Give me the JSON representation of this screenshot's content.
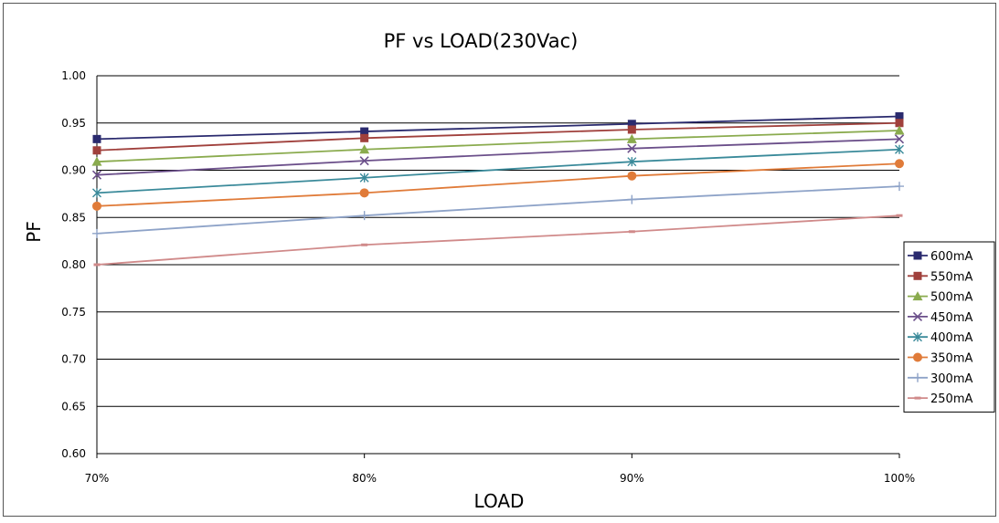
{
  "chart_data": {
    "type": "line",
    "title": "PF vs LOAD(230Vac)",
    "xlabel": "LOAD",
    "ylabel": "PF",
    "categories": [
      "70%",
      "80%",
      "90%",
      "100%"
    ],
    "ylim": [
      0.6,
      1.0
    ],
    "ytick_labels": [
      "0.60",
      "0.65",
      "0.70",
      "0.75",
      "0.80",
      "0.85",
      "0.90",
      "0.95",
      "1.00"
    ],
    "grid": "horizontal",
    "legend_position": "right",
    "series": [
      {
        "name": "600mA",
        "values": [
          0.933,
          0.941,
          0.949,
          0.957
        ],
        "color": "#2a2a6e",
        "marker": "square"
      },
      {
        "name": "550mA",
        "values": [
          0.921,
          0.934,
          0.943,
          0.95
        ],
        "color": "#a0403c",
        "marker": "square"
      },
      {
        "name": "500mA",
        "values": [
          0.909,
          0.922,
          0.933,
          0.942
        ],
        "color": "#8aab4e",
        "marker": "triangle"
      },
      {
        "name": "450mA",
        "values": [
          0.895,
          0.91,
          0.923,
          0.933
        ],
        "color": "#6b4f8a",
        "marker": "x"
      },
      {
        "name": "400mA",
        "values": [
          0.876,
          0.892,
          0.909,
          0.922
        ],
        "color": "#3a8a9a",
        "marker": "asterisk"
      },
      {
        "name": "350mA",
        "values": [
          0.862,
          0.876,
          0.894,
          0.907
        ],
        "color": "#e07b39",
        "marker": "circle"
      },
      {
        "name": "300mA",
        "values": [
          0.833,
          0.852,
          0.869,
          0.883
        ],
        "color": "#8ea3c8",
        "marker": "plus"
      },
      {
        "name": "250mA",
        "values": [
          0.8,
          0.821,
          0.835,
          0.852
        ],
        "color": "#d08a8a",
        "marker": "dash"
      }
    ]
  }
}
